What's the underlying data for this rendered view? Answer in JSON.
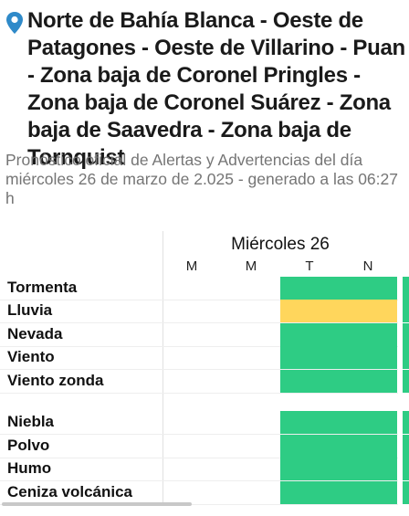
{
  "header": {
    "location_icon": "map-pin-icon",
    "title": "Norte de Bahía Blanca - Oeste de Patagones - Oeste de Villarino - Puan - Zona baja de Coronel Pringles - Zona baja de Coronel Suárez - Zona baja de Saavedra - Zona baja de Tornquist",
    "subtitle": "Pronóstico oficial de Alertas y Advertencias del día miércoles 26 de marzo de 2.025 - generado a las 06:27 h"
  },
  "table": {
    "day_label": "Miércoles 26",
    "periods": [
      "M",
      "M",
      "T",
      "N"
    ],
    "colors": {
      "green": "#2ecc84",
      "yellow": "#ffd65c",
      "pin": "#2f8ac9"
    },
    "rows": [
      {
        "label": "Tormenta",
        "levels": [
          "none",
          "none",
          "green",
          "green"
        ],
        "next": "green"
      },
      {
        "label": "Lluvia",
        "levels": [
          "none",
          "none",
          "yellow",
          "yellow"
        ],
        "next": "green"
      },
      {
        "label": "Nevada",
        "levels": [
          "none",
          "none",
          "green",
          "green"
        ],
        "next": "green"
      },
      {
        "label": "Viento",
        "levels": [
          "none",
          "none",
          "green",
          "green"
        ],
        "next": "green"
      },
      {
        "label": "Viento zonda",
        "levels": [
          "none",
          "none",
          "green",
          "green"
        ],
        "next": "green"
      },
      {
        "label": "Niebla",
        "levels": [
          "none",
          "none",
          "green",
          "green"
        ],
        "next": "green"
      },
      {
        "label": "Polvo",
        "levels": [
          "none",
          "none",
          "green",
          "green"
        ],
        "next": "green"
      },
      {
        "label": "Humo",
        "levels": [
          "none",
          "none",
          "green",
          "green"
        ],
        "next": "green"
      },
      {
        "label": "Ceniza volcánica",
        "levels": [
          "none",
          "none",
          "green",
          "green"
        ],
        "next": "green"
      }
    ]
  }
}
